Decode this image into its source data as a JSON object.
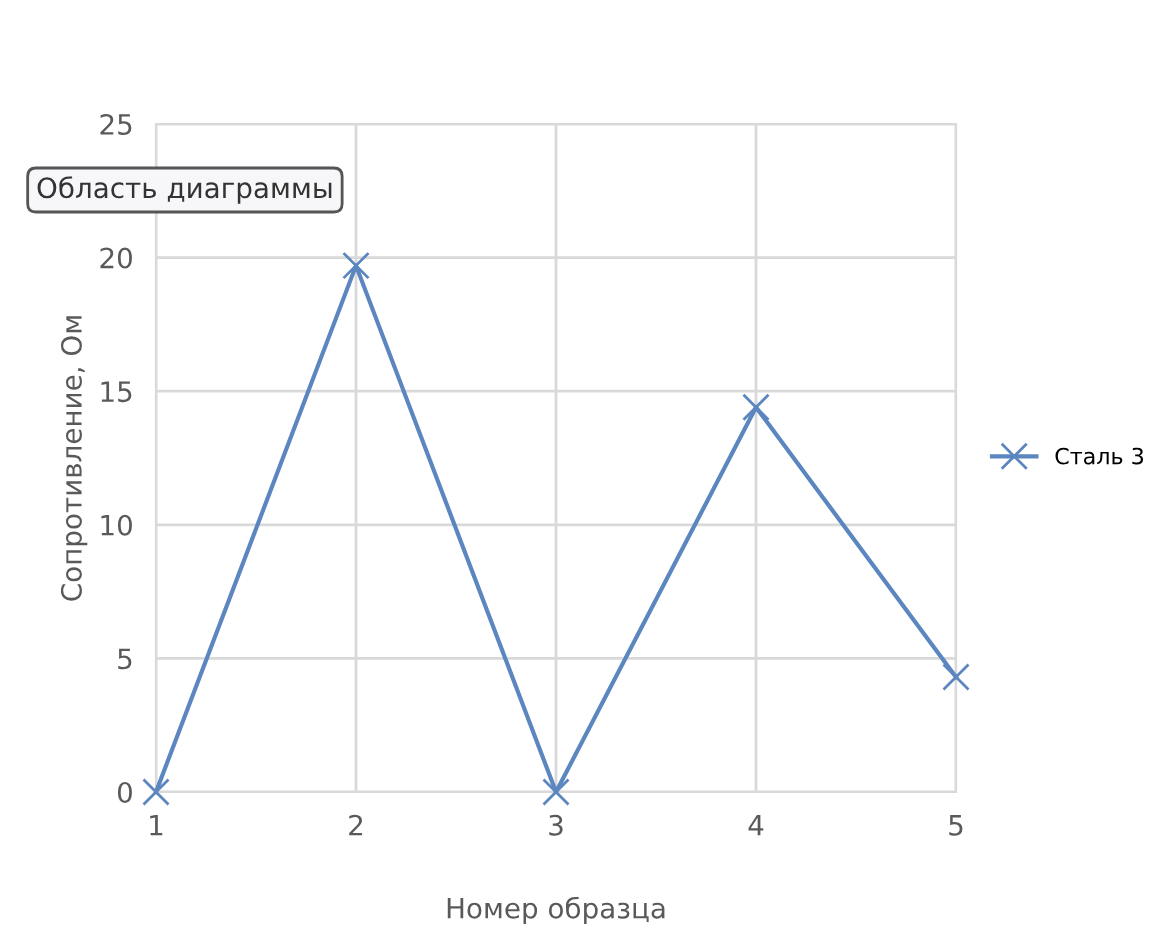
{
  "chart_data": {
    "type": "line",
    "xlabel": "Номер образца",
    "ylabel": "Сопротивление, Ом",
    "x": [
      1,
      2,
      3,
      4,
      5
    ],
    "series": [
      {
        "name": "Сталь 3",
        "color": "#5b86c0",
        "values": [
          0,
          19.7,
          0,
          14.4,
          4.3
        ]
      }
    ],
    "xlim": [
      1,
      5
    ],
    "xticks": [
      1,
      2,
      3,
      4,
      5
    ],
    "ylim": [
      0,
      25
    ],
    "yticks": [
      0,
      5,
      10,
      15,
      20,
      25
    ],
    "grid": true,
    "legend": "right",
    "marker": "cross",
    "line_style": "solid",
    "annotations": [
      "Область диаграммы"
    ]
  }
}
